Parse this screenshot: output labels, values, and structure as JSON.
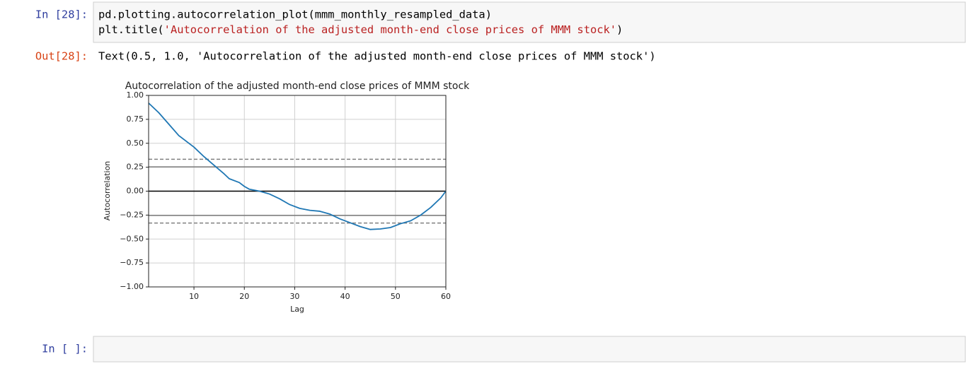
{
  "notebook": {
    "cells": [
      {
        "prompt": "In [28]:",
        "code": [
          [
            "pd.plotting.autocorrelation_plot(mmm_monthly_resampled_data)"
          ],
          [
            "plt.title(",
            "'Autocorrelation of the adjusted month-end close prices of MMM stock'",
            ")"
          ]
        ]
      },
      {
        "prompt": "Out[28]:",
        "output": "Text(0.5, 1.0, 'Autocorrelation of the adjusted month-end close prices of MMM stock')"
      },
      {
        "prompt": "In [ ]:"
      }
    ]
  },
  "chart_data": {
    "type": "line",
    "title": "Autocorrelation of the adjusted month-end close prices of MMM stock",
    "x_label": "Lag",
    "y_label": "Autocorrelation",
    "x": [
      1,
      3,
      5,
      7,
      10,
      12,
      14,
      16,
      17,
      19,
      20,
      21,
      23,
      25,
      27,
      29,
      31,
      33,
      35,
      37,
      39,
      41,
      43,
      45,
      47,
      49,
      51,
      53,
      55,
      57,
      59,
      60
    ],
    "values": [
      0.92,
      0.82,
      0.7,
      0.58,
      0.46,
      0.36,
      0.27,
      0.18,
      0.13,
      0.09,
      0.05,
      0.02,
      0.0,
      -0.03,
      -0.08,
      -0.14,
      -0.18,
      -0.2,
      -0.21,
      -0.24,
      -0.29,
      -0.33,
      -0.37,
      -0.4,
      -0.395,
      -0.38,
      -0.34,
      -0.31,
      -0.25,
      -0.17,
      -0.07,
      0.0
    ],
    "color": "#1f77b4",
    "xlim": [
      1,
      60
    ],
    "ylim": [
      -1,
      1
    ],
    "xticks": [
      10,
      20,
      30,
      40,
      50,
      60
    ],
    "yticks": [
      {
        "value": 1,
        "label": "1.00"
      },
      {
        "value": 0.75,
        "label": "0.75"
      },
      {
        "value": 0.5,
        "label": "0.50"
      },
      {
        "value": 0.25,
        "label": "0.25"
      },
      {
        "value": 0,
        "label": "0.00"
      },
      {
        "value": -0.25,
        "label": "−0.25"
      },
      {
        "value": -0.5,
        "label": "−0.50"
      },
      {
        "value": -0.75,
        "label": "−0.75"
      },
      {
        "value": -1,
        "label": "−1.00"
      }
    ],
    "grid": true,
    "hlines": [
      {
        "value": 0,
        "color": "#000000",
        "dashed": false
      },
      {
        "value": 0.253,
        "color": "#808080",
        "dashed": false
      },
      {
        "value": -0.253,
        "color": "#808080",
        "dashed": false
      },
      {
        "value": 0.333,
        "color": "#808080",
        "dashed": true
      },
      {
        "value": -0.333,
        "color": "#808080",
        "dashed": true
      }
    ]
  }
}
